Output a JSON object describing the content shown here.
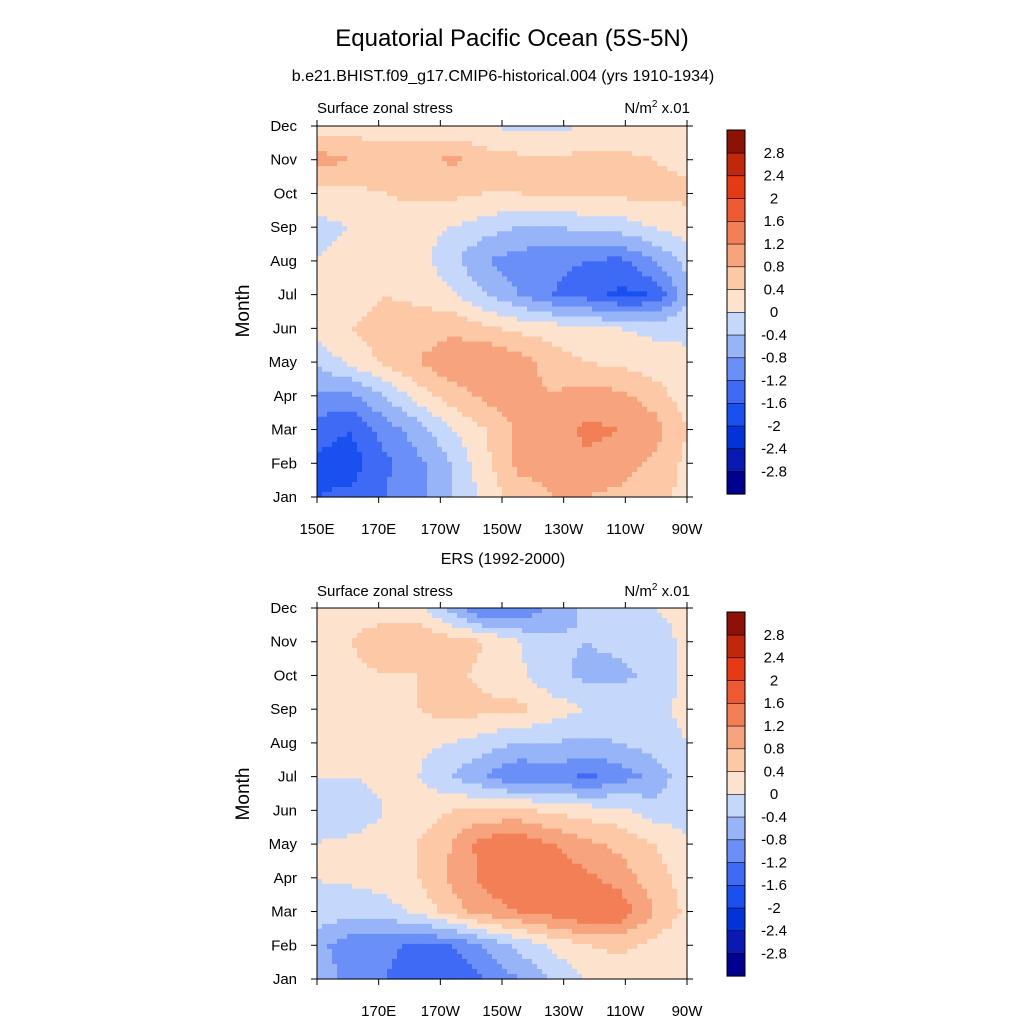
{
  "figure": {
    "title": "Equatorial Pacific Ocean (5S-5N)"
  },
  "chart_data": [
    {
      "type": "heatmap",
      "title": "b.e21.BHIST.f09_g17.CMIP6-historical.004 (yrs 1910-1934)",
      "left_label": "Surface zonal stress",
      "units_base": "N/m",
      "units_sup": "2",
      "units_suffix": " x.01",
      "ylabel": "Month",
      "x_ticks": [
        "150E",
        "170E",
        "170W",
        "150W",
        "130W",
        "110W",
        "90W"
      ],
      "y_ticks": [
        "Jan",
        "Feb",
        "Mar",
        "Apr",
        "May",
        "Jun",
        "Jul",
        "Aug",
        "Sep",
        "Oct",
        "Nov",
        "Dec"
      ],
      "xlim": [
        150,
        270
      ],
      "ylim": [
        1,
        12
      ],
      "grid": [
        [
          -1.6,
          -1.5,
          -1.2,
          -0.9,
          -0.4,
          0.1,
          0.6,
          0.8,
          0.8,
          0.7,
          0.5,
          0.3
        ],
        [
          -1.7,
          -1.8,
          -1.3,
          -0.9,
          -0.4,
          0.3,
          0.9,
          0.9,
          1.1,
          1.0,
          0.7,
          0.3
        ],
        [
          -1.4,
          -1.6,
          -1.0,
          -0.6,
          0.0,
          0.4,
          0.9,
          1.0,
          1.3,
          1.2,
          1.0,
          0.4
        ],
        [
          -0.9,
          -0.9,
          -0.4,
          0.2,
          0.6,
          0.9,
          1.0,
          0.8,
          1.0,
          0.9,
          0.6,
          0.2
        ],
        [
          -0.3,
          0.1,
          0.5,
          0.8,
          1.1,
          1.2,
          1.0,
          0.6,
          0.4,
          0.3,
          0.2,
          0.1
        ],
        [
          0.2,
          0.4,
          0.6,
          0.6,
          0.7,
          0.5,
          0.3,
          0.2,
          0.1,
          0.0,
          -0.1,
          -0.1
        ],
        [
          0.1,
          0.2,
          0.4,
          0.3,
          0.1,
          -0.4,
          -0.8,
          -1.2,
          -1.4,
          -1.7,
          -1.6,
          -0.5
        ],
        [
          0.0,
          0.1,
          0.3,
          0.2,
          -0.3,
          -0.8,
          -1.0,
          -1.1,
          -1.2,
          -1.3,
          -0.8,
          -0.3
        ],
        [
          -0.1,
          0.0,
          0.2,
          0.1,
          0.0,
          -0.2,
          -0.4,
          -0.4,
          -0.3,
          -0.2,
          0.0,
          0.2
        ],
        [
          0.2,
          0.3,
          0.4,
          0.5,
          0.5,
          0.4,
          0.4,
          0.5,
          0.5,
          0.5,
          0.5,
          0.5
        ],
        [
          1.0,
          0.8,
          0.6,
          0.6,
          0.9,
          0.6,
          0.5,
          0.5,
          0.5,
          0.5,
          0.4,
          0.3
        ],
        [
          0.2,
          0.2,
          0.2,
          0.2,
          0.1,
          0.0,
          -0.1,
          -0.1,
          0.0,
          0.1,
          0.2,
          0.2
        ]
      ]
    },
    {
      "type": "heatmap",
      "title": "ERS (1992-2000)",
      "left_label": "Surface zonal stress",
      "units_base": "N/m",
      "units_sup": "2",
      "units_suffix": " x.01",
      "ylabel": "Month",
      "x_ticks": [
        "",
        "170E",
        "170W",
        "150W",
        "130W",
        "110W",
        "90W"
      ],
      "y_ticks": [
        "Jan",
        "Feb",
        "Mar",
        "Apr",
        "May",
        "Jun",
        "Jul",
        "Aug",
        "Sep",
        "Oct",
        "Nov",
        "Dec"
      ],
      "xlim": [
        150,
        270
      ],
      "ylim": [
        1,
        12
      ],
      "grid": [
        [
          -0.6,
          -0.9,
          -1.2,
          -1.4,
          -1.6,
          -1.2,
          -0.8,
          -0.4,
          0.0,
          0.2,
          0.2,
          0.1
        ],
        [
          -0.7,
          -1.0,
          -1.1,
          -1.3,
          -1.2,
          -0.7,
          -0.3,
          0.1,
          0.4,
          0.5,
          0.3,
          0.1
        ],
        [
          -0.1,
          -0.3,
          -0.2,
          0.1,
          0.6,
          1.0,
          1.2,
          1.4,
          1.6,
          1.5,
          0.8,
          0.3
        ],
        [
          0.0,
          0.1,
          0.2,
          0.4,
          0.9,
          1.3,
          1.6,
          1.5,
          1.3,
          1.0,
          0.6,
          0.2
        ],
        [
          0.0,
          0.1,
          0.2,
          0.4,
          0.8,
          1.4,
          1.5,
          1.2,
          0.9,
          0.7,
          0.4,
          0.1
        ],
        [
          -0.2,
          -0.3,
          0.0,
          0.2,
          0.4,
          0.5,
          0.5,
          0.3,
          0.2,
          0.1,
          -0.2,
          -0.2
        ],
        [
          0.0,
          0.0,
          0.1,
          0.0,
          -0.4,
          -0.8,
          -1.2,
          -1.0,
          -1.3,
          -1.0,
          -0.7,
          -0.1
        ],
        [
          0.1,
          0.2,
          0.2,
          0.1,
          0.0,
          -0.2,
          -0.4,
          -0.4,
          -0.5,
          -0.4,
          -0.2,
          0.0
        ],
        [
          0.2,
          0.3,
          0.3,
          0.4,
          0.6,
          0.5,
          0.5,
          0.2,
          0.0,
          -0.1,
          -0.1,
          0.1
        ],
        [
          0.3,
          0.3,
          0.4,
          0.4,
          0.5,
          0.3,
          0.1,
          -0.3,
          -0.5,
          -0.5,
          -0.3,
          0.1
        ],
        [
          0.3,
          0.4,
          0.6,
          0.8,
          0.6,
          0.4,
          0.0,
          -0.3,
          -0.4,
          -0.3,
          -0.2,
          0.1
        ],
        [
          0.2,
          0.3,
          0.2,
          0.1,
          -0.6,
          -1.3,
          -1.2,
          -0.7,
          -0.3,
          -0.1,
          0.0,
          0.1
        ]
      ]
    }
  ],
  "colorbar": {
    "levels": [
      -3.2,
      -2.8,
      -2.4,
      -2,
      -1.6,
      -1.2,
      -0.8,
      -0.4,
      0,
      0.4,
      0.8,
      1.2,
      1.6,
      2,
      2.4,
      2.8,
      3.2
    ],
    "colors": [
      "#000090",
      "#0a18b4",
      "#0033d9",
      "#1a4ff0",
      "#3f6af5",
      "#6a8ff7",
      "#97b4f8",
      "#c5d8fb",
      "#fde3cd",
      "#fcc8a6",
      "#f7a47e",
      "#f27f55",
      "#ef5a33",
      "#e63a14",
      "#c0270b",
      "#8c1106"
    ],
    "labels": [
      "-2.8",
      "-2.4",
      "-2",
      "-1.6",
      "-1.2",
      "-0.8",
      "-0.4",
      "0",
      "0.4",
      "0.8",
      "1.2",
      "1.6",
      "2",
      "2.4",
      "2.8"
    ]
  }
}
